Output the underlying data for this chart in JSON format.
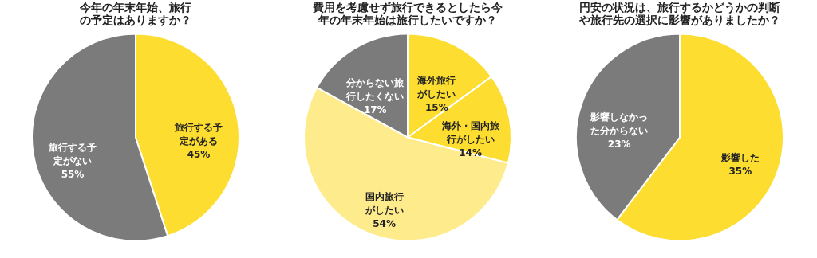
{
  "chart_data": [
    {
      "type": "pie",
      "title": "今年の年末年始、旅行の予定はありますか？",
      "categories": [
        "旅行する予定がある",
        "旅行する予定がない"
      ],
      "values": [
        45,
        55
      ],
      "colors": [
        "#fcdd30",
        "#7b7b7b"
      ],
      "value_labels": [
        "45%",
        "55%"
      ]
    },
    {
      "type": "pie",
      "title": "費用を考慮せず旅行できるとしたら今年の年末年始は旅行したいですか？",
      "categories": [
        "海外旅行がしたい",
        "海外・国内旅行がしたい",
        "国内旅行がしたい",
        "分からない旅行したくない"
      ],
      "values": [
        15,
        14,
        54,
        17
      ],
      "colors": [
        "#fcdd30",
        "#fcdd30",
        "#feeb8c",
        "#7b7b7b"
      ],
      "value_labels": [
        "15%",
        "14%",
        "54%",
        "17%"
      ]
    },
    {
      "type": "pie",
      "title": "円安の状況は、旅行するかどうかの判断や旅行先の選択に影響がありましたか？",
      "categories": [
        "影響した",
        "影響しなかった分からない"
      ],
      "values": [
        35,
        23
      ],
      "colors": [
        "#fcdd30",
        "#7b7b7b"
      ],
      "value_labels": [
        "35%",
        "23%"
      ]
    }
  ]
}
